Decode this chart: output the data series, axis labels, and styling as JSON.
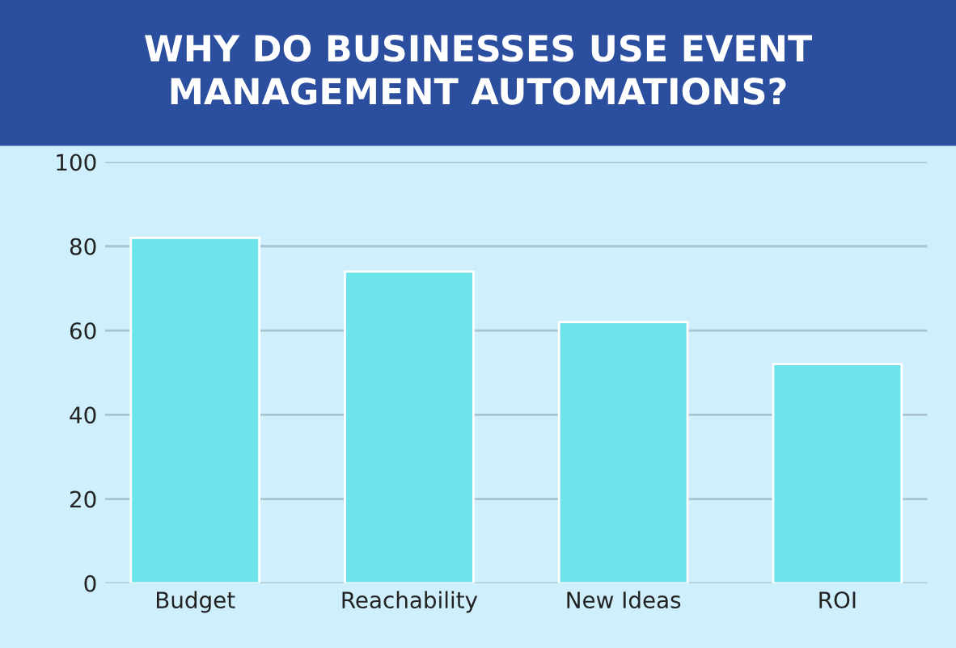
{
  "chart_data": {
    "type": "bar",
    "title": "WHY DO BUSINESSES USE EVENT\nMANAGEMENT AUTOMATIONS?",
    "categories": [
      "Budget",
      "Reachability",
      "New Ideas",
      "ROI"
    ],
    "values": [
      82,
      74,
      62,
      52
    ],
    "color": "#6ce4ea",
    "ylim": [
      0,
      100
    ],
    "yticks": [
      0,
      20,
      40,
      60,
      80,
      100
    ],
    "grid": "y",
    "legend": false
  }
}
